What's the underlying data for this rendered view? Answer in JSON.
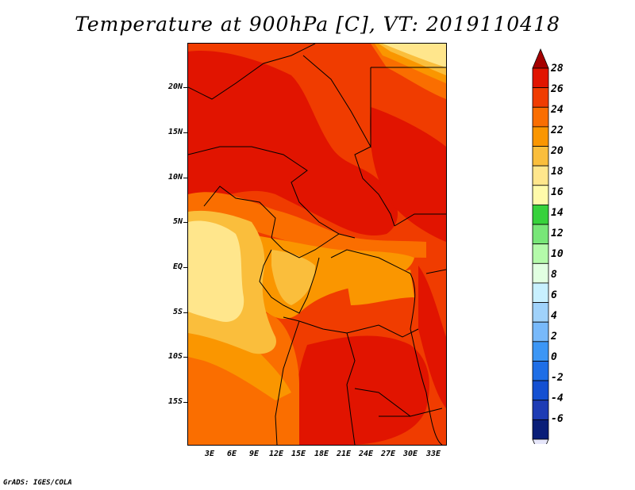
{
  "title": "Temperature at 900hPa [C], VT: 2019110418",
  "credit": "GrADS: IGES/COLA",
  "axes": {
    "lat_labels": [
      "20N",
      "15N",
      "10N",
      "5N",
      "EQ",
      "5S",
      "10S",
      "15S"
    ],
    "lon_labels": [
      "3E",
      "6E",
      "9E",
      "12E",
      "15E",
      "18E",
      "21E",
      "24E",
      "27E",
      "30E",
      "33E"
    ]
  },
  "colorbar": {
    "labels": [
      "28",
      "26",
      "24",
      "22",
      "20",
      "18",
      "16",
      "14",
      "12",
      "10",
      "8",
      "6",
      "4",
      "2",
      "0",
      "-2",
      "-4",
      "-6"
    ],
    "colors": [
      "#a50000",
      "#e11400",
      "#f03c00",
      "#fa6e00",
      "#fa9600",
      "#fabe3c",
      "#ffe68c",
      "#fffaaa",
      "#37d23c",
      "#78e678",
      "#b4faaa",
      "#e1ffe1",
      "#c8f0ff",
      "#a0d2fa",
      "#78b9fa",
      "#3c96f5",
      "#1e6ee6",
      "#1450d2",
      "#1e3cb4",
      "#0a1e78",
      "#e6e6fa"
    ]
  },
  "chart_data": {
    "type": "heatmap",
    "variable": "Temperature at 900hPa",
    "units": "C",
    "valid_time": "2019110418",
    "lon_range": [
      0,
      35
    ],
    "lat_range": [
      -19,
      24
    ],
    "contour_levels": [
      -6,
      -4,
      -2,
      0,
      2,
      4,
      6,
      8,
      10,
      12,
      14,
      16,
      18,
      20,
      22,
      24,
      26,
      28
    ]
  }
}
